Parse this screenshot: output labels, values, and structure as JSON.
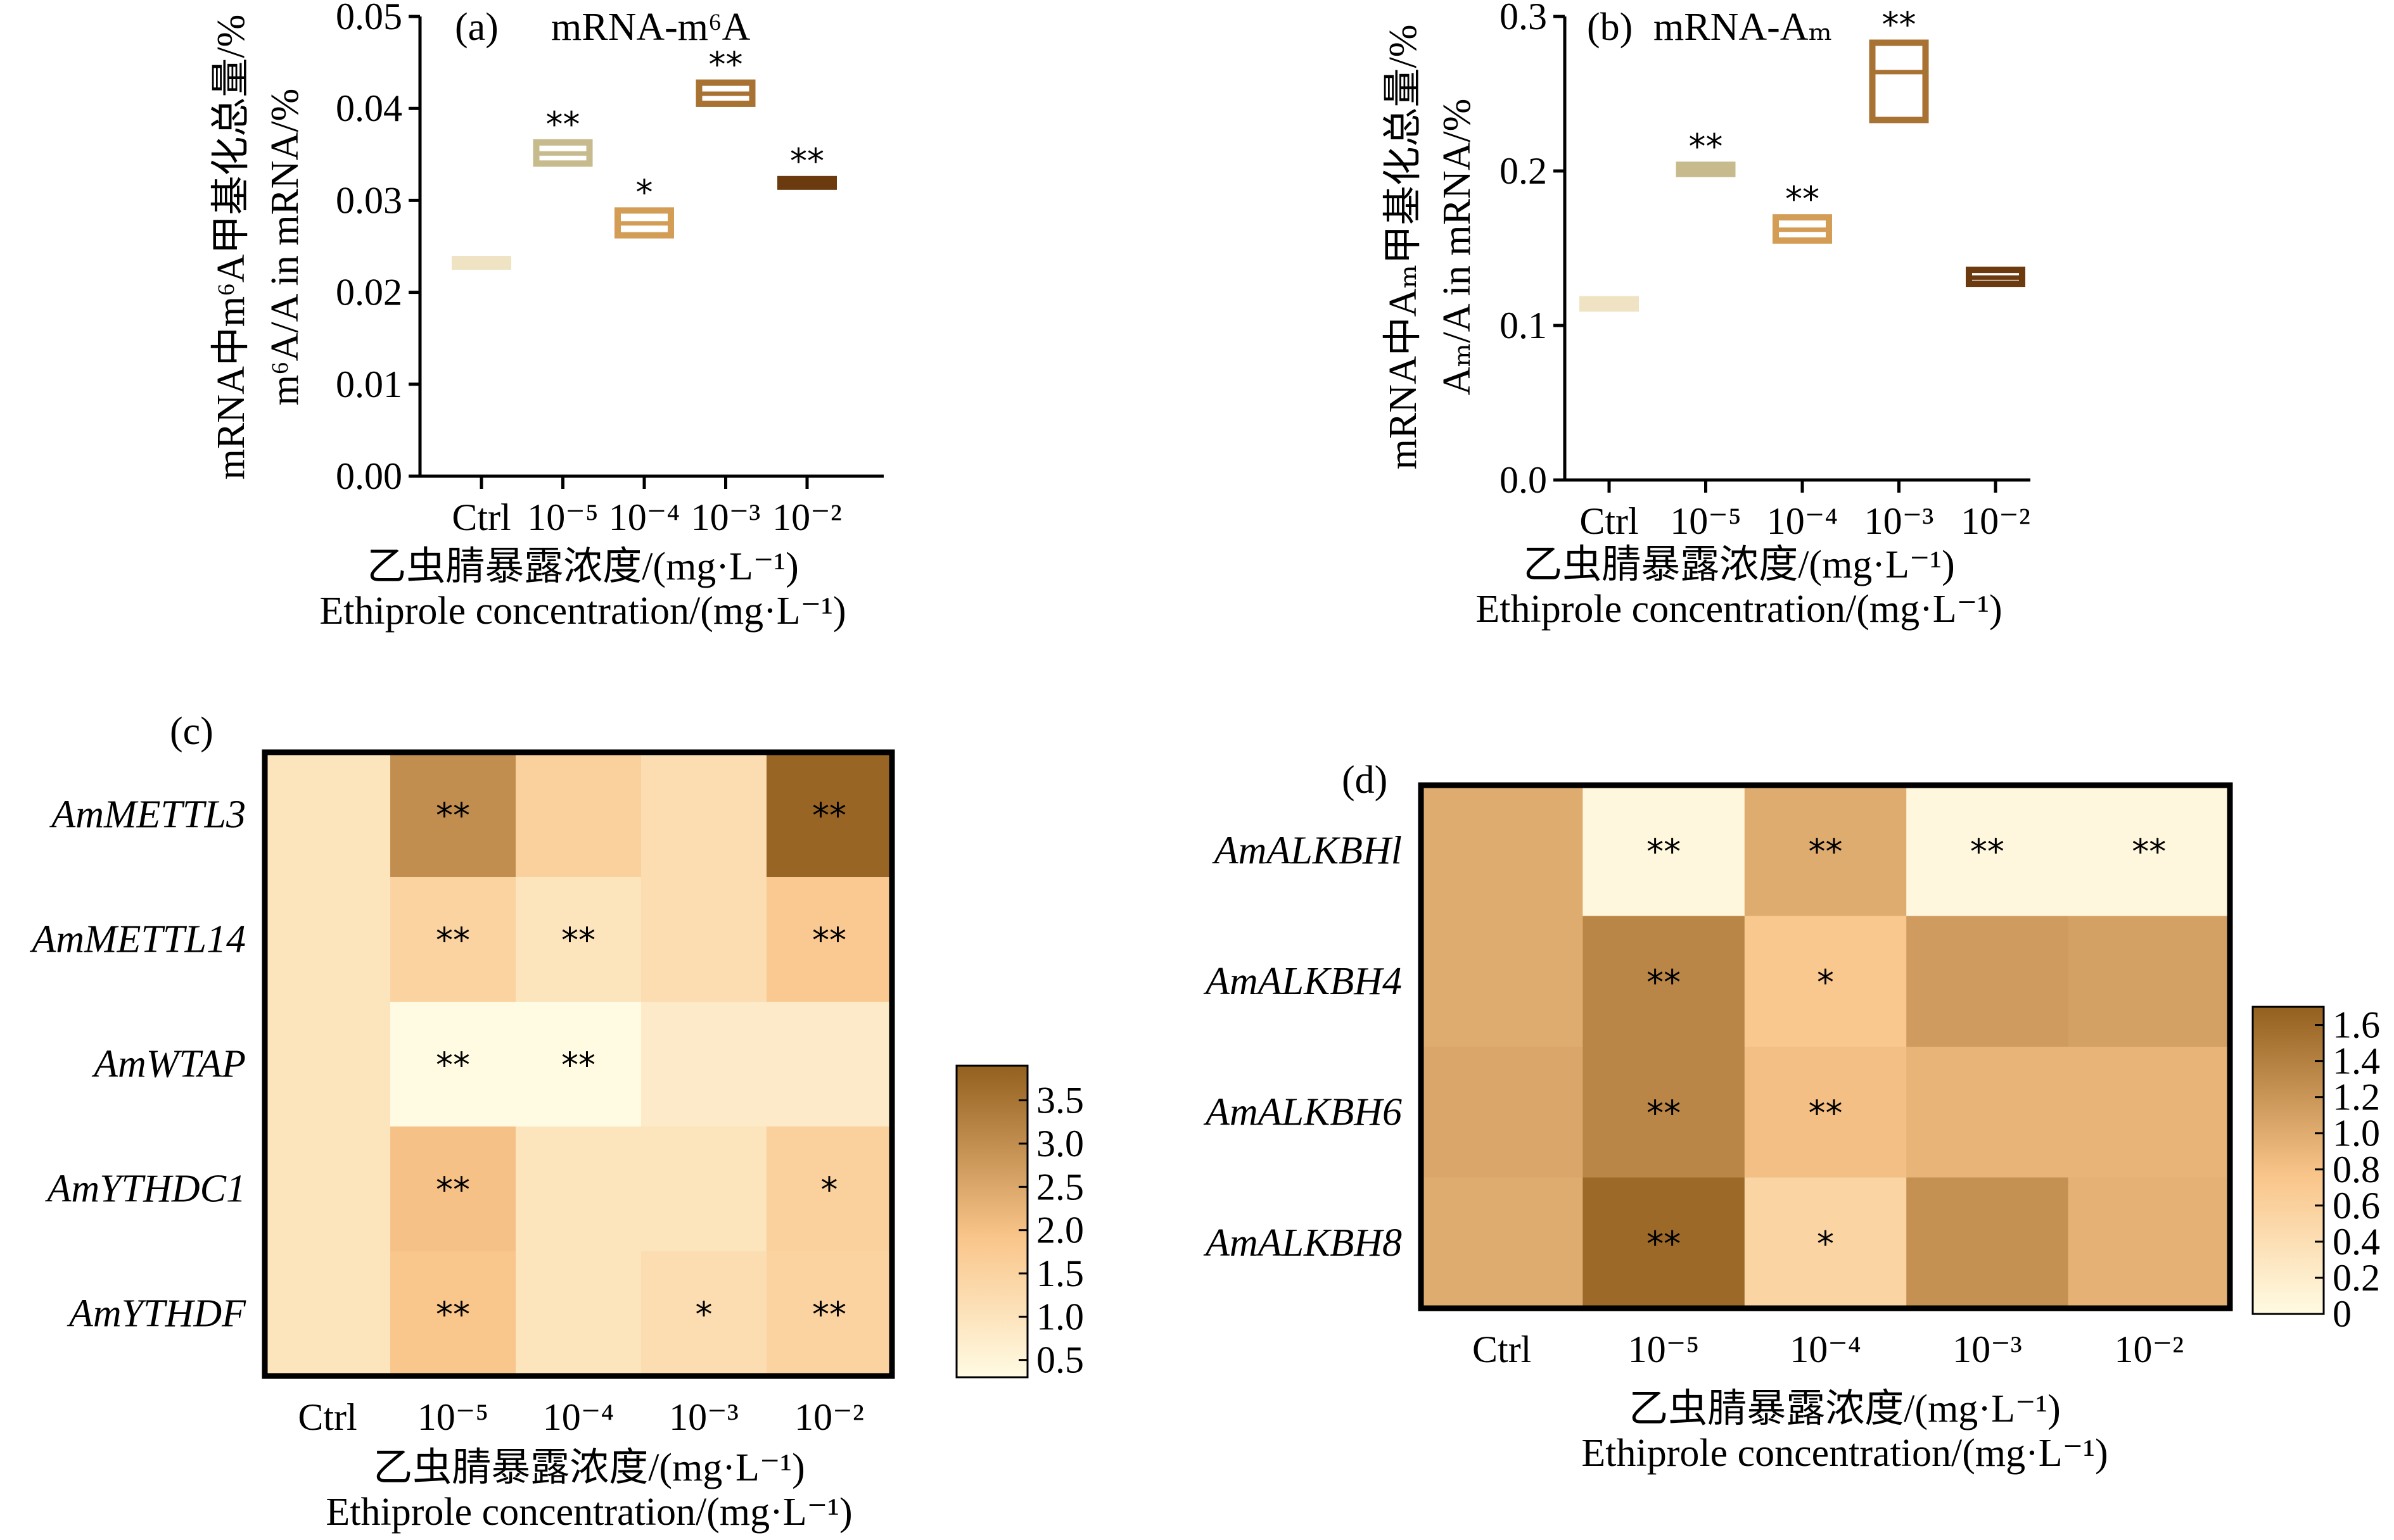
{
  "colors": {
    "ctrl": "#efe3c4",
    "e5": "#c7bb8e",
    "e4": "#d39d55",
    "e3": "#a87232",
    "e2": "#6b3a0f",
    "heat_low": "#fffbe3",
    "heat_mid": "#f9c58a",
    "heat_high": "#93601f"
  },
  "xaxis": {
    "categories": [
      "Ctrl",
      "10⁻⁵",
      "10⁻⁴",
      "10⁻³",
      "10⁻²"
    ],
    "title_cn": "乙虫腈暴露浓度/(mg·L⁻¹)",
    "title_en": "Ethiprole concentration/(mg·L⁻¹)"
  },
  "chart_data": [
    {
      "panel": "(a)",
      "type": "box",
      "title": "mRNA-m⁶A",
      "ylabel_cn": "mRNA中m⁶A甲基化总量/%",
      "ylabel_en": "m⁶A/A in mRNA/%",
      "ylim": [
        0,
        0.05
      ],
      "yticks": [
        "0.00",
        "0.01",
        "0.02",
        "0.03",
        "0.04",
        "0.05"
      ],
      "yvals": [
        0,
        0.01,
        0.02,
        0.03,
        0.04,
        0.05
      ],
      "boxes": [
        {
          "category": "Ctrl",
          "low": 0.0228,
          "median": 0.0232,
          "high": 0.0236,
          "sig": ""
        },
        {
          "category": "10⁻⁵",
          "low": 0.034,
          "median": 0.0351,
          "high": 0.0363,
          "sig": "**"
        },
        {
          "category": "10⁻⁴",
          "low": 0.0262,
          "median": 0.0275,
          "high": 0.0289,
          "sig": "*"
        },
        {
          "category": "10⁻³",
          "low": 0.0405,
          "median": 0.0416,
          "high": 0.0428,
          "sig": "**"
        },
        {
          "category": "10⁻²",
          "low": 0.0315,
          "median": 0.0319,
          "high": 0.0323,
          "sig": "**"
        }
      ]
    },
    {
      "panel": "(b)",
      "type": "box",
      "title": "mRNA-Aₘ",
      "ylabel_cn": "mRNA中Aₘ甲基化总量/%",
      "ylabel_en": "Aₘ/A in mRNA/%",
      "ylim": [
        0,
        0.3
      ],
      "yticks": [
        "0.0",
        "0.1",
        "0.2",
        "0.3"
      ],
      "yvals": [
        0,
        0.1,
        0.2,
        0.3
      ],
      "boxes": [
        {
          "category": "Ctrl",
          "low": 0.111,
          "median": 0.114,
          "high": 0.117,
          "sig": ""
        },
        {
          "category": "10⁻⁵",
          "low": 0.198,
          "median": 0.201,
          "high": 0.204,
          "sig": "**"
        },
        {
          "category": "10⁻⁴",
          "low": 0.155,
          "median": 0.162,
          "high": 0.17,
          "sig": "**"
        },
        {
          "category": "10⁻³",
          "low": 0.233,
          "median": 0.264,
          "high": 0.283,
          "sig": "**"
        },
        {
          "category": "10⁻²",
          "low": 0.127,
          "median": 0.131,
          "high": 0.136,
          "sig": ""
        }
      ]
    },
    {
      "panel": "(c)",
      "type": "heatmap",
      "rows": [
        "AmMETTL3",
        "AmMETTL14",
        "AmWTAP",
        "AmYTHDC1",
        "AmYTHDF"
      ],
      "columns": [
        "Ctrl",
        "10⁻⁵",
        "10⁻⁴",
        "10⁻³",
        "10⁻²"
      ],
      "values": [
        [
          1.0,
          3.0,
          1.6,
          1.2,
          3.8
        ],
        [
          1.0,
          1.5,
          1.0,
          1.2,
          1.8
        ],
        [
          1.0,
          0.3,
          0.2,
          0.8,
          0.8
        ],
        [
          1.0,
          2.0,
          1.0,
          1.0,
          1.6
        ],
        [
          1.0,
          1.9,
          1.0,
          1.2,
          1.5
        ]
      ],
      "sig": [
        [
          "",
          "**",
          "",
          "",
          "**"
        ],
        [
          "",
          "**",
          "**",
          "",
          "**"
        ],
        [
          "",
          "**",
          "**",
          "",
          ""
        ],
        [
          "",
          "**",
          "",
          "",
          "*"
        ],
        [
          "",
          "**",
          "",
          "*",
          "**"
        ]
      ],
      "colorbar": {
        "min": 0.3,
        "max": 3.9,
        "ticks": [
          "0.5",
          "1.0",
          "1.5",
          "2.0",
          "2.5",
          "3.0",
          "3.5"
        ],
        "tickvals": [
          0.5,
          1.0,
          1.5,
          2.0,
          2.5,
          3.0,
          3.5
        ]
      }
    },
    {
      "panel": "(d)",
      "type": "heatmap",
      "rows": [
        "AmALKBHl",
        "AmALKBH4",
        "AmALKBH6",
        "AmALKBH8"
      ],
      "columns": [
        "Ctrl",
        "10⁻⁵",
        "10⁻⁴",
        "10⁻³",
        "10⁻²"
      ],
      "values": [
        [
          1.0,
          0.05,
          1.0,
          0.05,
          0.05
        ],
        [
          1.0,
          1.35,
          0.72,
          1.15,
          1.1
        ],
        [
          1.05,
          1.35,
          0.82,
          0.92,
          0.92
        ],
        [
          1.0,
          1.62,
          0.55,
          1.25,
          0.95
        ]
      ],
      "sig": [
        [
          "",
          "**",
          "**",
          "**",
          "**"
        ],
        [
          "",
          "**",
          "*",
          "",
          ""
        ],
        [
          "",
          "**",
          "**",
          "",
          ""
        ],
        [
          "",
          "**",
          "*",
          "",
          ""
        ]
      ],
      "colorbar": {
        "min": 0.0,
        "max": 1.7,
        "ticks": [
          "0",
          "0.2",
          "0.4",
          "0.6",
          "0.8",
          "1.0",
          "1.2",
          "1.4",
          "1.6"
        ],
        "tickvals": [
          0,
          0.2,
          0.4,
          0.6,
          0.8,
          1.0,
          1.2,
          1.4,
          1.6
        ]
      }
    }
  ]
}
